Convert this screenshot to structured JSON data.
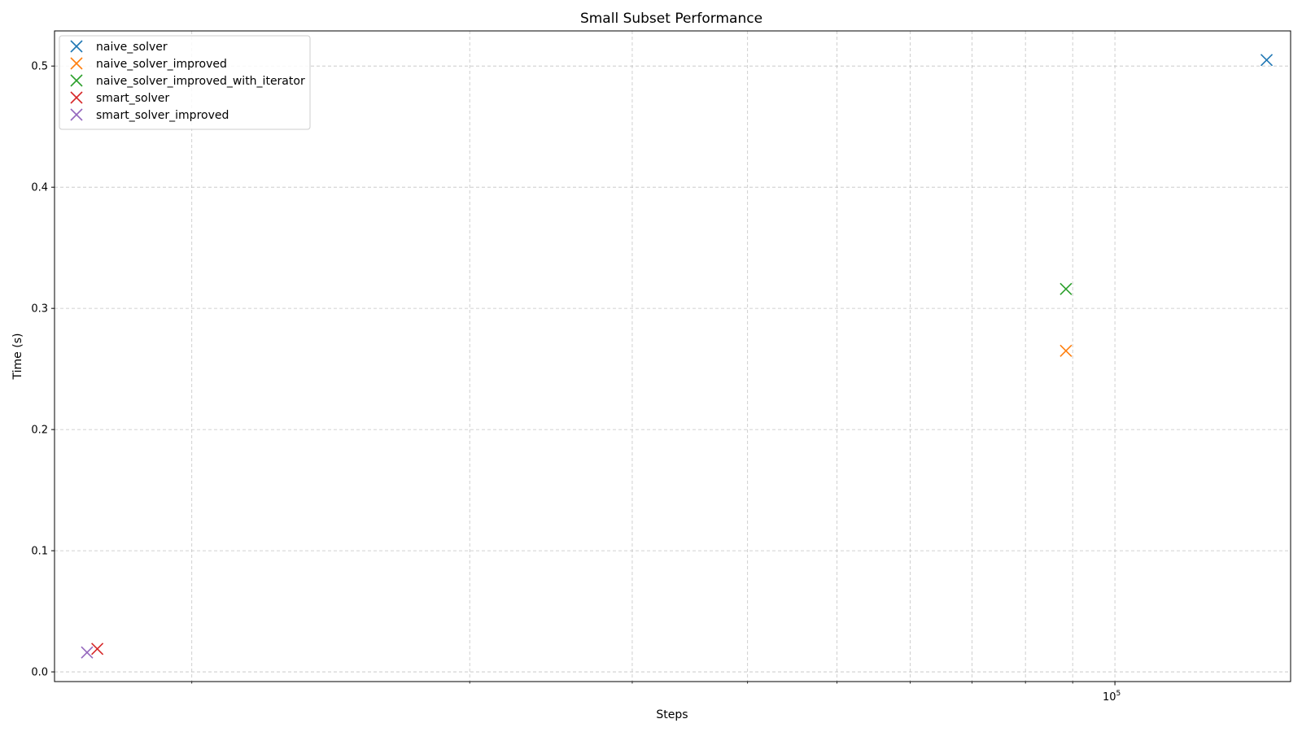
{
  "chart_data": {
    "type": "scatter",
    "title": "Small Subset Performance",
    "xlabel": "Steps",
    "ylabel": "Time (s)",
    "xscale": "log",
    "xlim": [
      7100,
      155000
    ],
    "ylim": [
      -0.008,
      0.529
    ],
    "x_major_ticks": [
      {
        "value": 100000,
        "base": "10",
        "exp": "5"
      }
    ],
    "x_minor_ticks": [
      10000,
      20000,
      30000,
      40000,
      50000,
      60000,
      70000,
      80000,
      90000
    ],
    "y_ticks": [
      0.0,
      0.1,
      0.2,
      0.3,
      0.4,
      0.5
    ],
    "y_tick_labels": [
      "0.0",
      "0.1",
      "0.2",
      "0.3",
      "0.4",
      "0.5"
    ],
    "grid": true,
    "legend_position": "top-left",
    "marker": "x",
    "series": [
      {
        "name": "naive_solver",
        "color": "#1f77b4",
        "points": [
          {
            "x": 146000,
            "y": 0.505
          }
        ]
      },
      {
        "name": "naive_solver_improved",
        "color": "#ff7f0e",
        "points": [
          {
            "x": 88500,
            "y": 0.265
          }
        ]
      },
      {
        "name": "naive_solver_improved_with_iterator",
        "color": "#2ca02c",
        "points": [
          {
            "x": 88500,
            "y": 0.316
          }
        ]
      },
      {
        "name": "smart_solver",
        "color": "#d62728",
        "points": [
          {
            "x": 7900,
            "y": 0.019
          }
        ]
      },
      {
        "name": "smart_solver_improved",
        "color": "#9467bd",
        "points": [
          {
            "x": 7700,
            "y": 0.016
          }
        ]
      }
    ]
  }
}
